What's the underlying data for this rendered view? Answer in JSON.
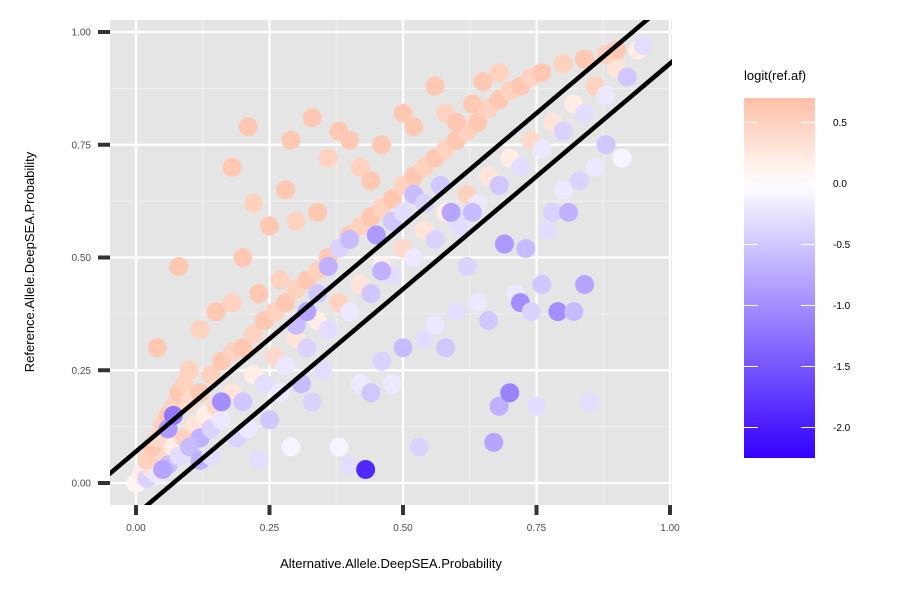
{
  "chart_data": {
    "type": "scatter",
    "title": "",
    "xlabel": "Alternative.Allele.DeepSEA.Probability",
    "ylabel": "Reference.Allele.DeepSEA.Probability",
    "xlim": [
      -0.05,
      1.0
    ],
    "ylim": [
      -0.05,
      1.02
    ],
    "x_ticks": [
      "0.00",
      "0.25",
      "0.50",
      "0.75",
      "1.00"
    ],
    "y_ticks": [
      "0.00",
      "0.25",
      "0.50",
      "0.75",
      "1.00"
    ],
    "grid": true,
    "background": "#e5e5e5",
    "legend": {
      "title": "logit(ref.af)",
      "position": "right",
      "range": [
        -2.25,
        0.7
      ],
      "breaks": [
        {
          "value": 0.5,
          "label": "0.5"
        },
        {
          "value": 0.0,
          "label": "0.0"
        },
        {
          "value": -0.5,
          "label": "-0.5"
        },
        {
          "value": -1.0,
          "label": "-1.0"
        },
        {
          "value": -1.5,
          "label": "-1.5"
        },
        {
          "value": -2.0,
          "label": "-2.0"
        }
      ],
      "colors": {
        "high": "#ffbfa6",
        "mid": "#ffffff",
        "low": "#3300ff"
      }
    },
    "reference_lines": [
      {
        "intercept": 0.07,
        "slope": 1.0
      },
      {
        "intercept": -0.07,
        "slope": 1.0
      }
    ],
    "points": [
      [
        0.0,
        0.0,
        0.1
      ],
      [
        0.01,
        0.02,
        0.2
      ],
      [
        0.02,
        0.01,
        -0.4
      ],
      [
        0.03,
        0.03,
        0.3
      ],
      [
        0.04,
        0.02,
        -0.2
      ],
      [
        0.05,
        0.06,
        0.4
      ],
      [
        0.06,
        0.04,
        -0.6
      ],
      [
        0.07,
        0.08,
        0.2
      ],
      [
        0.08,
        0.06,
        -0.3
      ],
      [
        0.09,
        0.1,
        0.5
      ],
      [
        0.1,
        0.08,
        -0.1
      ],
      [
        0.11,
        0.13,
        0.3
      ],
      [
        0.12,
        0.1,
        -0.7
      ],
      [
        0.13,
        0.15,
        0.2
      ],
      [
        0.14,
        0.12,
        -0.4
      ],
      [
        0.15,
        0.17,
        0.4
      ],
      [
        0.16,
        0.14,
        -0.2
      ],
      [
        0.18,
        0.2,
        0.3
      ],
      [
        0.2,
        0.18,
        -0.5
      ],
      [
        0.22,
        0.24,
        0.2
      ],
      [
        0.24,
        0.22,
        -0.3
      ],
      [
        0.26,
        0.28,
        0.4
      ],
      [
        0.28,
        0.26,
        -0.2
      ],
      [
        0.3,
        0.32,
        0.3
      ],
      [
        0.32,
        0.3,
        -0.4
      ],
      [
        0.34,
        0.36,
        0.2
      ],
      [
        0.36,
        0.34,
        -0.3
      ],
      [
        0.38,
        0.4,
        0.5
      ],
      [
        0.4,
        0.38,
        -0.2
      ],
      [
        0.42,
        0.44,
        0.3
      ],
      [
        0.44,
        0.42,
        -0.5
      ],
      [
        0.46,
        0.48,
        0.2
      ],
      [
        0.48,
        0.46,
        -0.3
      ],
      [
        0.5,
        0.52,
        0.4
      ],
      [
        0.52,
        0.5,
        -0.2
      ],
      [
        0.54,
        0.56,
        0.3
      ],
      [
        0.56,
        0.54,
        -0.4
      ],
      [
        0.58,
        0.6,
        0.2
      ],
      [
        0.6,
        0.58,
        -0.3
      ],
      [
        0.62,
        0.64,
        0.5
      ],
      [
        0.64,
        0.62,
        -0.2
      ],
      [
        0.66,
        0.68,
        0.3
      ],
      [
        0.68,
        0.66,
        -0.5
      ],
      [
        0.7,
        0.72,
        0.2
      ],
      [
        0.72,
        0.7,
        -0.3
      ],
      [
        0.74,
        0.76,
        0.4
      ],
      [
        0.76,
        0.74,
        -0.2
      ],
      [
        0.78,
        0.8,
        0.3
      ],
      [
        0.8,
        0.78,
        -0.4
      ],
      [
        0.82,
        0.84,
        0.2
      ],
      [
        0.84,
        0.82,
        -0.3
      ],
      [
        0.86,
        0.88,
        0.5
      ],
      [
        0.88,
        0.86,
        -0.2
      ],
      [
        0.9,
        0.92,
        0.3
      ],
      [
        0.92,
        0.9,
        -0.5
      ],
      [
        0.94,
        0.96,
        0.2
      ],
      [
        0.95,
        0.97,
        -0.3
      ],
      [
        0.02,
        0.05,
        0.5
      ],
      [
        0.03,
        0.08,
        0.6
      ],
      [
        0.04,
        0.1,
        0.4
      ],
      [
        0.05,
        0.13,
        0.5
      ],
      [
        0.06,
        0.15,
        0.6
      ],
      [
        0.07,
        0.17,
        0.5
      ],
      [
        0.08,
        0.2,
        0.6
      ],
      [
        0.09,
        0.22,
        0.5
      ],
      [
        0.1,
        0.18,
        0.4
      ],
      [
        0.12,
        0.2,
        0.6
      ],
      [
        0.14,
        0.24,
        0.5
      ],
      [
        0.16,
        0.27,
        0.6
      ],
      [
        0.18,
        0.29,
        0.5
      ],
      [
        0.2,
        0.3,
        0.6
      ],
      [
        0.22,
        0.33,
        0.5
      ],
      [
        0.24,
        0.36,
        0.6
      ],
      [
        0.26,
        0.38,
        0.5
      ],
      [
        0.28,
        0.4,
        0.6
      ],
      [
        0.3,
        0.43,
        0.5
      ],
      [
        0.32,
        0.45,
        0.6
      ],
      [
        0.34,
        0.47,
        0.5
      ],
      [
        0.36,
        0.5,
        0.6
      ],
      [
        0.38,
        0.52,
        0.5
      ],
      [
        0.4,
        0.55,
        0.6
      ],
      [
        0.42,
        0.57,
        0.5
      ],
      [
        0.44,
        0.59,
        0.6
      ],
      [
        0.46,
        0.61,
        0.5
      ],
      [
        0.48,
        0.63,
        0.6
      ],
      [
        0.5,
        0.66,
        0.5
      ],
      [
        0.52,
        0.68,
        0.6
      ],
      [
        0.54,
        0.7,
        0.5
      ],
      [
        0.56,
        0.72,
        0.6
      ],
      [
        0.58,
        0.74,
        0.5
      ],
      [
        0.6,
        0.76,
        0.6
      ],
      [
        0.62,
        0.78,
        0.5
      ],
      [
        0.64,
        0.8,
        0.6
      ],
      [
        0.66,
        0.83,
        0.5
      ],
      [
        0.68,
        0.85,
        0.6
      ],
      [
        0.7,
        0.87,
        0.5
      ],
      [
        0.72,
        0.88,
        0.6
      ],
      [
        0.74,
        0.9,
        0.5
      ],
      [
        0.76,
        0.91,
        0.6
      ],
      [
        0.8,
        0.93,
        0.5
      ],
      [
        0.84,
        0.94,
        0.6
      ],
      [
        0.88,
        0.95,
        0.5
      ],
      [
        0.9,
        0.96,
        0.6
      ],
      [
        0.04,
        0.3,
        0.6
      ],
      [
        0.08,
        0.48,
        0.6
      ],
      [
        0.1,
        0.25,
        0.5
      ],
      [
        0.12,
        0.34,
        0.5
      ],
      [
        0.15,
        0.38,
        0.6
      ],
      [
        0.18,
        0.7,
        0.6
      ],
      [
        0.18,
        0.4,
        0.5
      ],
      [
        0.2,
        0.5,
        0.6
      ],
      [
        0.21,
        0.79,
        0.6
      ],
      [
        0.22,
        0.62,
        0.5
      ],
      [
        0.23,
        0.42,
        0.6
      ],
      [
        0.25,
        0.57,
        0.6
      ],
      [
        0.27,
        0.45,
        0.5
      ],
      [
        0.28,
        0.65,
        0.6
      ],
      [
        0.29,
        0.76,
        0.6
      ],
      [
        0.3,
        0.58,
        0.5
      ],
      [
        0.33,
        0.81,
        0.6
      ],
      [
        0.34,
        0.6,
        0.6
      ],
      [
        0.36,
        0.72,
        0.5
      ],
      [
        0.38,
        0.78,
        0.6
      ],
      [
        0.4,
        0.76,
        0.6
      ],
      [
        0.42,
        0.7,
        0.5
      ],
      [
        0.44,
        0.67,
        0.6
      ],
      [
        0.46,
        0.75,
        0.6
      ],
      [
        0.5,
        0.82,
        0.6
      ],
      [
        0.52,
        0.79,
        0.6
      ],
      [
        0.56,
        0.88,
        0.6
      ],
      [
        0.58,
        0.82,
        0.5
      ],
      [
        0.6,
        0.8,
        0.6
      ],
      [
        0.63,
        0.84,
        0.6
      ],
      [
        0.65,
        0.89,
        0.6
      ],
      [
        0.68,
        0.91,
        0.5
      ],
      [
        0.05,
        0.03,
        -0.8
      ],
      [
        0.06,
        0.12,
        -0.9
      ],
      [
        0.07,
        0.15,
        -1.2
      ],
      [
        0.1,
        0.08,
        -0.6
      ],
      [
        0.12,
        0.05,
        -0.7
      ],
      [
        0.14,
        0.06,
        -0.3
      ],
      [
        0.16,
        0.18,
        -1.0
      ],
      [
        0.19,
        0.1,
        -0.4
      ],
      [
        0.21,
        0.12,
        -0.2
      ],
      [
        0.23,
        0.05,
        -0.3
      ],
      [
        0.25,
        0.14,
        -0.5
      ],
      [
        0.27,
        0.2,
        -0.2
      ],
      [
        0.29,
        0.08,
        -0.1
      ],
      [
        0.31,
        0.22,
        -0.6
      ],
      [
        0.33,
        0.18,
        -0.4
      ],
      [
        0.35,
        0.25,
        -0.3
      ],
      [
        0.38,
        0.08,
        -0.1
      ],
      [
        0.4,
        0.04,
        -0.3
      ],
      [
        0.42,
        0.22,
        -0.2
      ],
      [
        0.43,
        0.03,
        -1.9
      ],
      [
        0.44,
        0.2,
        -0.5
      ],
      [
        0.46,
        0.27,
        -0.4
      ],
      [
        0.48,
        0.22,
        -0.2
      ],
      [
        0.5,
        0.3,
        -0.6
      ],
      [
        0.53,
        0.08,
        -0.4
      ],
      [
        0.54,
        0.32,
        -0.3
      ],
      [
        0.56,
        0.35,
        -0.2
      ],
      [
        0.58,
        0.3,
        -0.5
      ],
      [
        0.6,
        0.38,
        -0.3
      ],
      [
        0.62,
        0.48,
        -0.4
      ],
      [
        0.64,
        0.4,
        -0.2
      ],
      [
        0.66,
        0.36,
        -0.5
      ],
      [
        0.67,
        0.09,
        -0.8
      ],
      [
        0.68,
        0.17,
        -0.7
      ],
      [
        0.69,
        0.53,
        -0.9
      ],
      [
        0.7,
        0.2,
        -1.1
      ],
      [
        0.71,
        0.42,
        -0.2
      ],
      [
        0.72,
        0.4,
        -1.0
      ],
      [
        0.73,
        0.52,
        -0.6
      ],
      [
        0.74,
        0.38,
        -0.4
      ],
      [
        0.75,
        0.17,
        -0.3
      ],
      [
        0.76,
        0.44,
        -0.5
      ],
      [
        0.77,
        0.56,
        -0.3
      ],
      [
        0.78,
        0.6,
        -0.4
      ],
      [
        0.79,
        0.38,
        -1.0
      ],
      [
        0.8,
        0.65,
        -0.2
      ],
      [
        0.81,
        0.6,
        -0.7
      ],
      [
        0.82,
        0.38,
        -0.6
      ],
      [
        0.83,
        0.67,
        -0.4
      ],
      [
        0.84,
        0.44,
        -0.8
      ],
      [
        0.85,
        0.18,
        -0.3
      ],
      [
        0.86,
        0.7,
        -0.2
      ],
      [
        0.88,
        0.75,
        -0.5
      ],
      [
        0.91,
        0.72,
        -0.1
      ],
      [
        0.3,
        0.35,
        -0.6
      ],
      [
        0.32,
        0.38,
        -0.8
      ],
      [
        0.34,
        0.42,
        -0.5
      ],
      [
        0.36,
        0.48,
        -0.7
      ],
      [
        0.38,
        0.52,
        -0.4
      ],
      [
        0.4,
        0.54,
        -0.6
      ],
      [
        0.45,
        0.55,
        -0.9
      ],
      [
        0.46,
        0.47,
        -0.7
      ],
      [
        0.48,
        0.58,
        -0.5
      ],
      [
        0.5,
        0.6,
        -0.3
      ],
      [
        0.52,
        0.64,
        -0.6
      ],
      [
        0.54,
        0.62,
        -0.4
      ],
      [
        0.57,
        0.66,
        -0.5
      ],
      [
        0.59,
        0.6,
        -0.8
      ],
      [
        0.61,
        0.56,
        -0.3
      ],
      [
        0.63,
        0.6,
        -0.6
      ]
    ]
  }
}
